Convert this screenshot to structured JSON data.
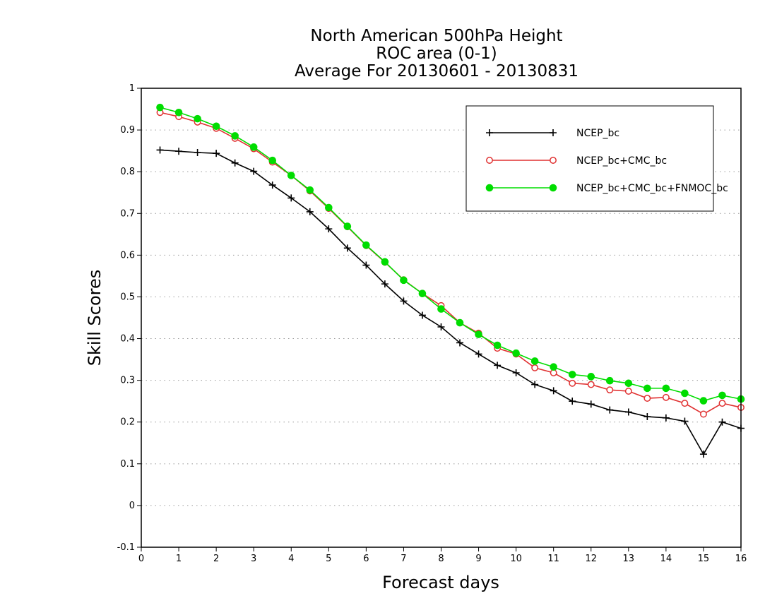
{
  "chart_data": {
    "type": "line",
    "title": [
      "North American 500hPa Height",
      "ROC area (0-1)",
      "Average For 20130601 - 20130831"
    ],
    "xlabel": "Forecast days",
    "ylabel": "Skill Scores",
    "xlim": [
      0,
      16
    ],
    "ylim": [
      -0.1,
      1
    ],
    "x_ticks": [
      "0",
      "1",
      "2",
      "3",
      "4",
      "5",
      "6",
      "7",
      "8",
      "9",
      "10",
      "11",
      "12",
      "13",
      "14",
      "15",
      "16"
    ],
    "y_ticks": [
      "-0.1",
      "0",
      "0.1",
      "0.2",
      "0.3",
      "0.4",
      "0.5",
      "0.6",
      "0.7",
      "0.8",
      "0.9",
      "1"
    ],
    "grid": "dotted horizontal",
    "legend_position": "top-right",
    "x": [
      0.5,
      1,
      1.5,
      2,
      2.5,
      3,
      3.5,
      4,
      4.5,
      5,
      5.5,
      6,
      6.5,
      7,
      7.5,
      8,
      8.5,
      9,
      9.5,
      10,
      10.5,
      11,
      11.5,
      12,
      12.5,
      13,
      13.5,
      14,
      14.5,
      15,
      15.5,
      16
    ],
    "series": [
      {
        "name": "NCEP_bc",
        "color": "#000000",
        "marker": "plus",
        "values": [
          0.852,
          0.849,
          0.846,
          0.844,
          0.821,
          0.801,
          0.768,
          0.737,
          0.704,
          0.663,
          0.617,
          0.576,
          0.531,
          0.49,
          0.456,
          0.428,
          0.39,
          0.363,
          0.336,
          0.318,
          0.29,
          0.275,
          0.25,
          0.243,
          0.229,
          0.224,
          0.213,
          0.21,
          0.202,
          0.123,
          0.2,
          0.185
        ]
      },
      {
        "name": "NCEP_bc+CMC_bc",
        "color": "#e03030",
        "marker": "open-circle",
        "values": [
          0.942,
          0.932,
          0.919,
          0.904,
          0.88,
          0.855,
          0.823,
          0.791,
          0.754,
          0.712,
          0.668,
          0.623,
          0.583,
          0.541,
          0.508,
          0.479,
          0.438,
          0.413,
          0.377,
          0.363,
          0.33,
          0.318,
          0.293,
          0.29,
          0.277,
          0.274,
          0.257,
          0.259,
          0.245,
          0.219,
          0.245,
          0.235
        ]
      },
      {
        "name": "NCEP_bc+CMC_bc+FNMOC_bc",
        "color": "#00dd00",
        "marker": "filled-circle",
        "values": [
          0.954,
          0.942,
          0.927,
          0.909,
          0.886,
          0.859,
          0.827,
          0.791,
          0.756,
          0.714,
          0.669,
          0.624,
          0.584,
          0.54,
          0.508,
          0.471,
          0.438,
          0.41,
          0.384,
          0.365,
          0.346,
          0.332,
          0.314,
          0.309,
          0.299,
          0.293,
          0.281,
          0.281,
          0.269,
          0.251,
          0.264,
          0.255
        ]
      }
    ]
  }
}
